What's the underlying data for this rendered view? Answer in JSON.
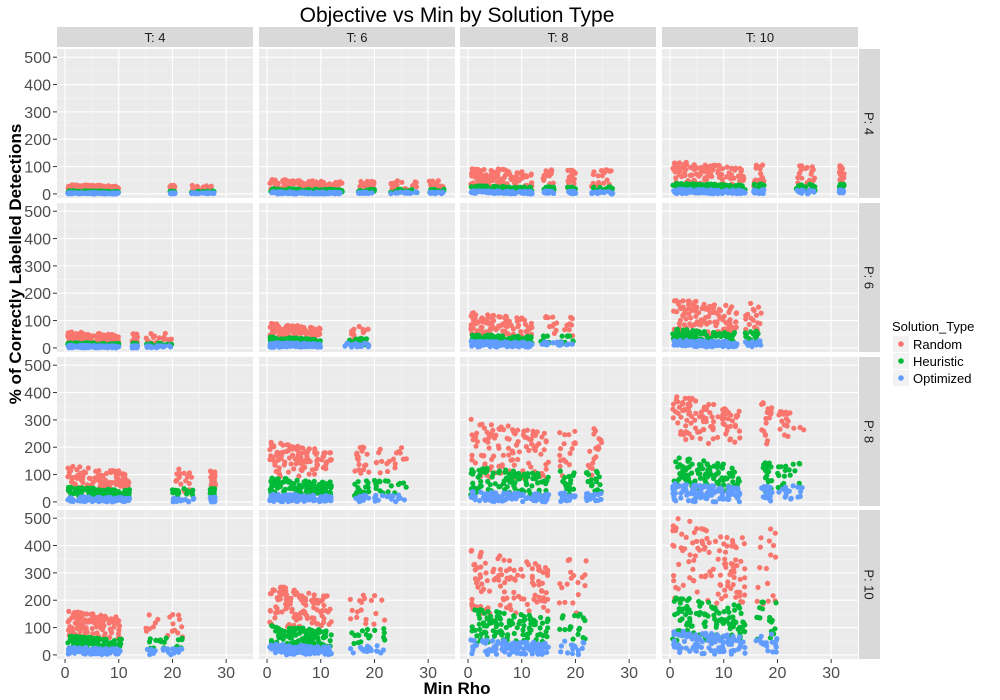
{
  "chart_data": {
    "type": "scatter",
    "title": "Objective vs Min by Solution Type",
    "xlabel": "Min Rho",
    "ylabel": "% of Correctly Labelled Detections",
    "xlim": [
      -1.5,
      35
    ],
    "ylim": [
      -15,
      530
    ],
    "x_ticks": [
      "0",
      "10",
      "20",
      "30"
    ],
    "x_tick_values": [
      0,
      10,
      20,
      30
    ],
    "y_ticks": [
      "0",
      "100",
      "200",
      "300",
      "400",
      "500"
    ],
    "y_tick_values": [
      0,
      100,
      200,
      300,
      400,
      500
    ],
    "grid": true,
    "facet_columns": [
      "T: 4",
      "T: 6",
      "T: 8",
      "T: 10"
    ],
    "facet_rows": [
      "P: 4",
      "P: 6",
      "P: 8",
      "P: 10"
    ],
    "legend": {
      "title": "Solution_Type",
      "placement": "right",
      "entries": [
        {
          "name": "Random",
          "color": "#F8766D"
        },
        {
          "name": "Heuristic",
          "color": "#00BA38"
        },
        {
          "name": "Optimized",
          "color": "#619CFF"
        }
      ]
    },
    "panels": [
      {
        "col": "T: 4",
        "row": "P: 4",
        "x_max": 28,
        "x_clusters": [
          [
            0.5,
            10
          ],
          [
            19.5,
            20.5
          ],
          [
            23.5,
            28
          ]
        ],
        "series": [
          {
            "name": "Random",
            "low": 10,
            "high": 35
          },
          {
            "name": "Heuristic",
            "low": 3,
            "high": 12
          },
          {
            "name": "Optimized",
            "low": 0,
            "high": 5
          }
        ]
      },
      {
        "col": "T: 6",
        "row": "P: 4",
        "x_max": 33,
        "x_clusters": [
          [
            0.5,
            14
          ],
          [
            17,
            20
          ],
          [
            23,
            28
          ],
          [
            30,
            33
          ]
        ],
        "series": [
          {
            "name": "Random",
            "low": 15,
            "high": 55
          },
          {
            "name": "Heuristic",
            "low": 5,
            "high": 20
          },
          {
            "name": "Optimized",
            "low": 0,
            "high": 8
          }
        ]
      },
      {
        "col": "T: 8",
        "row": "P: 4",
        "x_max": 27,
        "x_clusters": [
          [
            0.5,
            12
          ],
          [
            14,
            16
          ],
          [
            18.5,
            20
          ],
          [
            23,
            27
          ]
        ],
        "series": [
          {
            "name": "Random",
            "low": 20,
            "high": 100
          },
          {
            "name": "Heuristic",
            "low": 8,
            "high": 30
          },
          {
            "name": "Optimized",
            "low": 0,
            "high": 12
          }
        ]
      },
      {
        "col": "T: 10",
        "row": "P: 4",
        "x_max": 32,
        "x_clusters": [
          [
            0.5,
            14
          ],
          [
            15.5,
            17.5
          ],
          [
            23.5,
            27
          ],
          [
            31.5,
            32.5
          ]
        ],
        "series": [
          {
            "name": "Random",
            "low": 25,
            "high": 120
          },
          {
            "name": "Heuristic",
            "low": 10,
            "high": 40
          },
          {
            "name": "Optimized",
            "low": 0,
            "high": 18
          }
        ]
      },
      {
        "col": "T: 4",
        "row": "P: 6",
        "x_max": 20,
        "x_clusters": [
          [
            0.5,
            10
          ],
          [
            12.5,
            13.5
          ],
          [
            15,
            20
          ]
        ],
        "series": [
          {
            "name": "Random",
            "low": 15,
            "high": 60
          },
          {
            "name": "Heuristic",
            "low": 5,
            "high": 20
          },
          {
            "name": "Optimized",
            "low": 0,
            "high": 10
          }
        ]
      },
      {
        "col": "T: 6",
        "row": "P: 6",
        "x_max": 19,
        "x_clusters": [
          [
            0.5,
            10
          ],
          [
            14.5,
            19
          ]
        ],
        "series": [
          {
            "name": "Random",
            "low": 25,
            "high": 90
          },
          {
            "name": "Heuristic",
            "low": 10,
            "high": 40
          },
          {
            "name": "Optimized",
            "low": 2,
            "high": 20
          }
        ]
      },
      {
        "col": "T: 8",
        "row": "P: 6",
        "x_max": 20,
        "x_clusters": [
          [
            0.5,
            12
          ],
          [
            13.5,
            20
          ]
        ],
        "series": [
          {
            "name": "Random",
            "low": 35,
            "high": 130
          },
          {
            "name": "Heuristic",
            "low": 15,
            "high": 50
          },
          {
            "name": "Optimized",
            "low": 3,
            "high": 25
          }
        ]
      },
      {
        "col": "T: 10",
        "row": "P: 6",
        "x_max": 17,
        "x_clusters": [
          [
            0.5,
            12.5
          ],
          [
            14,
            17
          ]
        ],
        "series": [
          {
            "name": "Random",
            "low": 45,
            "high": 185
          },
          {
            "name": "Heuristic",
            "low": 15,
            "high": 70
          },
          {
            "name": "Optimized",
            "low": 3,
            "high": 30
          }
        ]
      },
      {
        "col": "T: 4",
        "row": "P: 8",
        "x_max": 28,
        "x_clusters": [
          [
            0.5,
            12
          ],
          [
            20,
            24
          ],
          [
            27,
            28
          ]
        ],
        "series": [
          {
            "name": "Random",
            "low": 35,
            "high": 135
          },
          {
            "name": "Heuristic",
            "low": 15,
            "high": 55
          },
          {
            "name": "Optimized",
            "low": 0,
            "high": 20
          }
        ]
      },
      {
        "col": "T: 6",
        "row": "P: 8",
        "x_max": 26,
        "x_clusters": [
          [
            0.5,
            12
          ],
          [
            16,
            19
          ],
          [
            20,
            26
          ]
        ],
        "series": [
          {
            "name": "Random",
            "low": 90,
            "high": 220
          },
          {
            "name": "Heuristic",
            "low": 20,
            "high": 90
          },
          {
            "name": "Optimized",
            "low": 0,
            "high": 30
          }
        ]
      },
      {
        "col": "T: 8",
        "row": "P: 8",
        "x_max": 25,
        "x_clusters": [
          [
            0.5,
            15
          ],
          [
            17,
            20
          ],
          [
            22,
            25
          ]
        ],
        "series": [
          {
            "name": "Random",
            "low": 80,
            "high": 305
          },
          {
            "name": "Heuristic",
            "low": 20,
            "high": 130
          },
          {
            "name": "Optimized",
            "low": 0,
            "high": 40
          }
        ]
      },
      {
        "col": "T: 10",
        "row": "P: 8",
        "x_max": 25,
        "x_clusters": [
          [
            0.5,
            13
          ],
          [
            17,
            19
          ],
          [
            20,
            25
          ]
        ],
        "series": [
          {
            "name": "Random",
            "low": 200,
            "high": 395
          },
          {
            "name": "Heuristic",
            "low": 40,
            "high": 165
          },
          {
            "name": "Optimized",
            "low": 0,
            "high": 70
          }
        ]
      },
      {
        "col": "T: 4",
        "row": "P: 10",
        "x_max": 22,
        "x_clusters": [
          [
            0.5,
            10.5
          ],
          [
            15,
            22
          ]
        ],
        "series": [
          {
            "name": "Random",
            "low": 60,
            "high": 165
          },
          {
            "name": "Heuristic",
            "low": 20,
            "high": 70
          },
          {
            "name": "Optimized",
            "low": 0,
            "high": 30
          }
        ]
      },
      {
        "col": "T: 6",
        "row": "P: 10",
        "x_max": 22,
        "x_clusters": [
          [
            0.5,
            12
          ],
          [
            15.5,
            22
          ]
        ],
        "series": [
          {
            "name": "Random",
            "low": 100,
            "high": 260
          },
          {
            "name": "Heuristic",
            "low": 25,
            "high": 110
          },
          {
            "name": "Optimized",
            "low": 0,
            "high": 40
          }
        ]
      },
      {
        "col": "T: 8",
        "row": "P: 10",
        "x_max": 22,
        "x_clusters": [
          [
            0.5,
            15
          ],
          [
            17,
            22
          ]
        ],
        "series": [
          {
            "name": "Random",
            "low": 150,
            "high": 385
          },
          {
            "name": "Heuristic",
            "low": 40,
            "high": 170
          },
          {
            "name": "Optimized",
            "low": 0,
            "high": 60
          }
        ]
      },
      {
        "col": "T: 10",
        "row": "P: 10",
        "x_max": 20,
        "x_clusters": [
          [
            0.5,
            14
          ],
          [
            16,
            20
          ]
        ],
        "series": [
          {
            "name": "Random",
            "low": 180,
            "high": 510
          },
          {
            "name": "Heuristic",
            "low": 50,
            "high": 220
          },
          {
            "name": "Optimized",
            "low": 0,
            "high": 90
          }
        ]
      }
    ]
  }
}
